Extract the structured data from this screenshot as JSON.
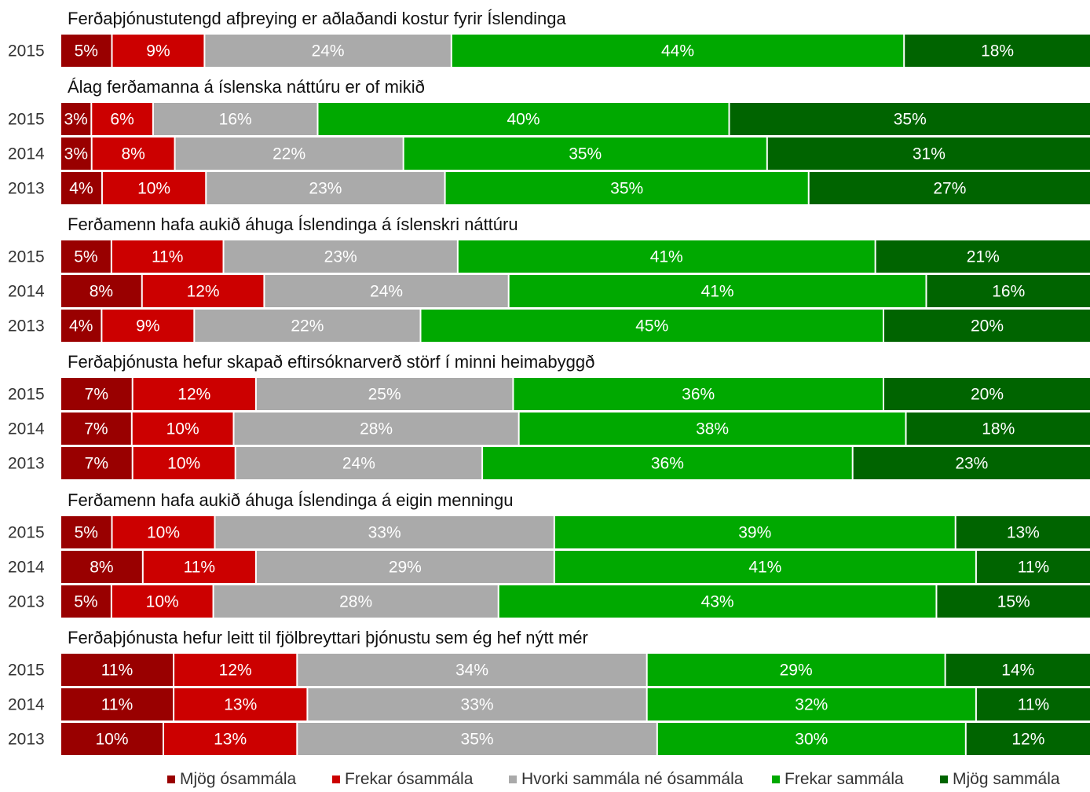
{
  "chart_data": {
    "type": "bar",
    "orientation": "horizontal",
    "stacked": true,
    "normalized": true,
    "categories": [
      "Mjög ósammála",
      "Frekar ósammála",
      "Hvorki sammála né ósammála",
      "Frekar sammála",
      "Mjög sammála"
    ],
    "colors": [
      "#990000",
      "#cc0000",
      "#aaaaaa",
      "#00a900",
      "#006400"
    ],
    "legend_position": "bottom",
    "grid": false,
    "groups": [
      {
        "title": "Ferðaþjónustutengd afþreying er aðlaðandi kostur fyrir Íslendinga",
        "rows": [
          {
            "year": "2015",
            "values": [
              5,
              9,
              24,
              44,
              18
            ],
            "labels": [
              "5%",
              "9%",
              "24%",
              "44%",
              "18%"
            ]
          }
        ]
      },
      {
        "title": "Álag ferðamanna á íslenska náttúru er of mikið",
        "rows": [
          {
            "year": "2015",
            "values": [
              3,
              6,
              16,
              40,
              35
            ],
            "labels": [
              "3%",
              "6%",
              "16%",
              "40%",
              "35%"
            ]
          },
          {
            "year": "2014",
            "values": [
              3,
              8,
              22,
              35,
              31
            ],
            "labels": [
              "3%",
              "8%",
              "22%",
              "35%",
              "31%"
            ]
          },
          {
            "year": "2013",
            "values": [
              4,
              10,
              23,
              35,
              27
            ],
            "labels": [
              "4%",
              "10%",
              "23%",
              "35%",
              "27%"
            ]
          }
        ]
      },
      {
        "title": "Ferðamenn hafa aukið áhuga Íslendinga á íslenskri náttúru",
        "rows": [
          {
            "year": "2015",
            "values": [
              5,
              11,
              23,
              41,
              21
            ],
            "labels": [
              "5%",
              "11%",
              "23%",
              "41%",
              "21%"
            ]
          },
          {
            "year": "2014",
            "values": [
              8,
              12,
              24,
              41,
              16
            ],
            "labels": [
              "8%",
              "12%",
              "24%",
              "41%",
              "16%"
            ]
          },
          {
            "year": "2013",
            "values": [
              4,
              9,
              22,
              45,
              20
            ],
            "labels": [
              "4%",
              "9%",
              "22%",
              "45%",
              "20%"
            ]
          }
        ]
      },
      {
        "title": "Ferðaþjónusta hefur skapað eftirsóknarverð störf í minni heimabyggð",
        "rows": [
          {
            "year": "2015",
            "values": [
              7,
              12,
              25,
              36,
              20
            ],
            "labels": [
              "7%",
              "12%",
              "25%",
              "36%",
              "20%"
            ]
          },
          {
            "year": "2014",
            "values": [
              7,
              10,
              28,
              38,
              18
            ],
            "labels": [
              "7%",
              "10%",
              "28%",
              "38%",
              "18%"
            ]
          },
          {
            "year": "2013",
            "values": [
              7,
              10,
              24,
              36,
              23
            ],
            "labels": [
              "7%",
              "10%",
              "24%",
              "36%",
              "23%"
            ]
          }
        ]
      },
      {
        "title": "Ferðamenn hafa aukið áhuga Íslendinga á eigin menningu",
        "rows": [
          {
            "year": "2015",
            "values": [
              5,
              10,
              33,
              39,
              13
            ],
            "labels": [
              "5%",
              "10%",
              "33%",
              "39%",
              "13%"
            ]
          },
          {
            "year": "2014",
            "values": [
              8,
              11,
              29,
              41,
              11
            ],
            "labels": [
              "8%",
              "11%",
              "29%",
              "41%",
              "11%"
            ]
          },
          {
            "year": "2013",
            "values": [
              5,
              10,
              28,
              43,
              15
            ],
            "labels": [
              "5%",
              "10%",
              "28%",
              "43%",
              "15%"
            ]
          }
        ]
      },
      {
        "title": "Ferðaþjónusta hefur leitt til fjölbreyttari þjónustu sem ég hef nýtt mér",
        "rows": [
          {
            "year": "2015",
            "values": [
              11,
              12,
              34,
              29,
              14
            ],
            "labels": [
              "11%",
              "12%",
              "34%",
              "29%",
              "14%"
            ]
          },
          {
            "year": "2014",
            "values": [
              11,
              13,
              33,
              32,
              11
            ],
            "labels": [
              "11%",
              "13%",
              "33%",
              "32%",
              "11%"
            ]
          },
          {
            "year": "2013",
            "values": [
              10,
              13,
              35,
              30,
              12
            ],
            "labels": [
              "10%",
              "13%",
              "35%",
              "30%",
              "12%"
            ]
          }
        ]
      }
    ]
  }
}
